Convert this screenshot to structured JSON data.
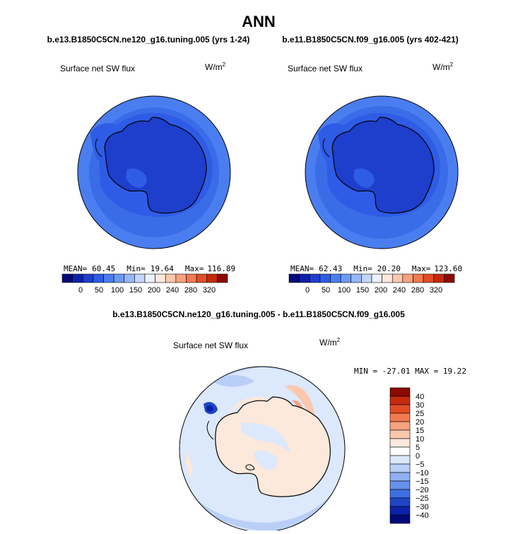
{
  "chart_data": {
    "type": "heatmap",
    "title": "ANN",
    "panels": [
      {
        "case_title": "b.e13.B1850C5CN.ne120_g16.tuning.005 (yrs 1-24)",
        "variable": "Surface net SW flux",
        "units_base": "W/m",
        "units_exp": "2",
        "stats": {
          "mean_label": "MEAN=",
          "mean": "60.45",
          "min_label": "Min=",
          "min": "19.64",
          "max_label": "Max=",
          "max": "116.89"
        },
        "colorbar": {
          "tick_labels": [
            "0",
            "50",
            "100",
            "150",
            "200",
            "240",
            "280",
            "320"
          ],
          "colors": [
            "#000a7a",
            "#0b21a8",
            "#1e3ecc",
            "#2f5ce6",
            "#4a7ef0",
            "#6e99f3",
            "#97b6f6",
            "#c3d6fa",
            "#eaf2fd",
            "#fde8dc",
            "#fbc7ad",
            "#f7a27e",
            "#f27950",
            "#e24d26",
            "#c62a0d",
            "#8b0a00"
          ]
        }
      },
      {
        "case_title": "b.e11.B1850C5CN.f09_g16.005 (yrs 402-421)",
        "variable": "Surface net SW flux",
        "units_base": "W/m",
        "units_exp": "2",
        "stats": {
          "mean_label": "MEAN=",
          "mean": "62.43",
          "min_label": "Min=",
          "min": "20.20",
          "max_label": "Max=",
          "max": "123.60"
        },
        "colorbar": {
          "tick_labels": [
            "0",
            "50",
            "100",
            "150",
            "200",
            "240",
            "280",
            "320"
          ],
          "colors": [
            "#000a7a",
            "#0b21a8",
            "#1e3ecc",
            "#2f5ce6",
            "#4a7ef0",
            "#6e99f3",
            "#97b6f6",
            "#c3d6fa",
            "#eaf2fd",
            "#fde8dc",
            "#fbc7ad",
            "#f7a27e",
            "#f27950",
            "#e24d26",
            "#c62a0d",
            "#8b0a00"
          ]
        }
      },
      {
        "case_title": "b.e13.B1850C5CN.ne120_g16.tuning.005 - b.e11.B1850C5CN.f09_g16.005",
        "variable": "Surface net SW flux",
        "units_base": "W/m",
        "units_exp": "2",
        "stats_text": "MIN = -27.01 MAX = 19.22",
        "colorbar": {
          "tick_labels": [
            "40",
            "30",
            "25",
            "20",
            "15",
            "10",
            "5",
            "0",
            "−5",
            "−10",
            "−15",
            "−20",
            "−25",
            "−30",
            "−40"
          ],
          "colors": [
            "#8b0a00",
            "#c62a0d",
            "#e24d26",
            "#f27950",
            "#f7a27e",
            "#fbc7ad",
            "#fde8dc",
            "#ffffff",
            "#dce8fb",
            "#b9cff7",
            "#8fb1f3",
            "#6690ec",
            "#3f6ee2",
            "#1f46c8",
            "#0b21a8",
            "#000a7a"
          ]
        }
      }
    ]
  }
}
